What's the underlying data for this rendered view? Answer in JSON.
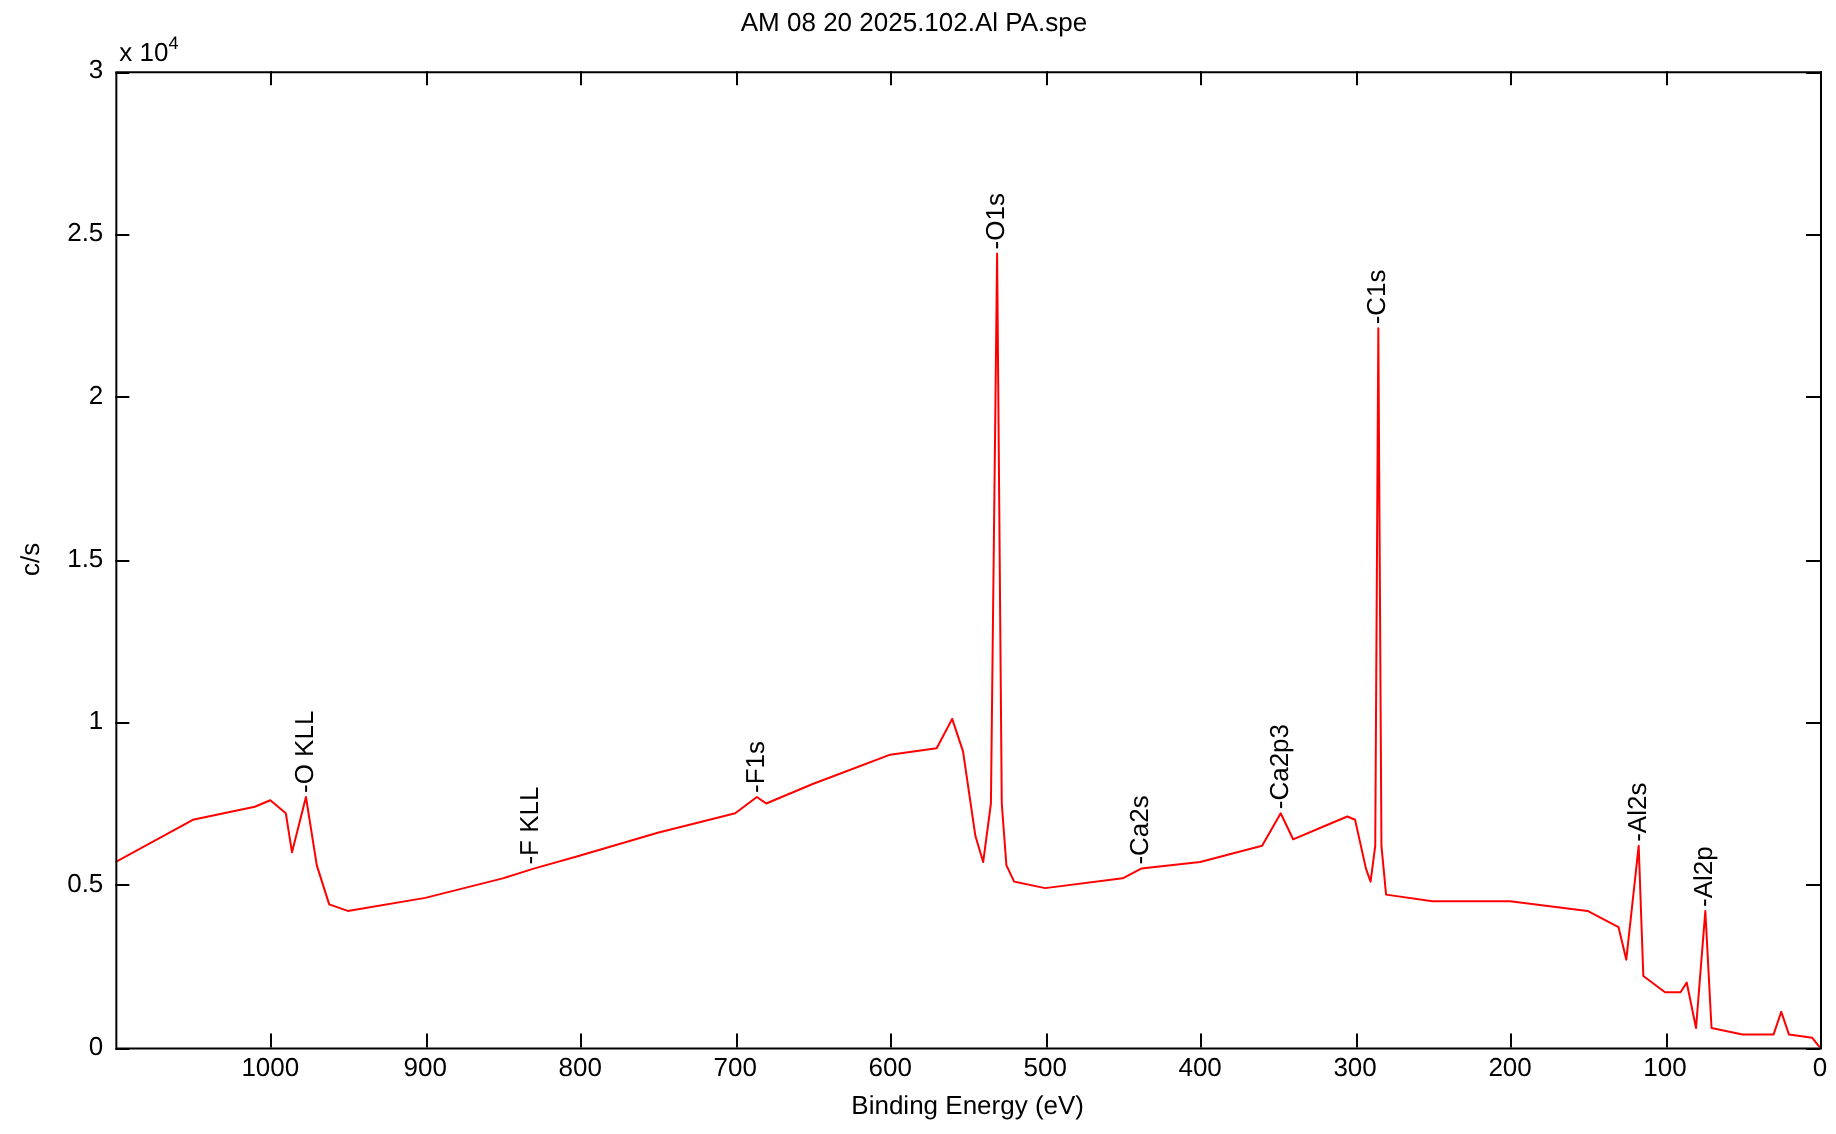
{
  "chart_data": {
    "type": "line",
    "title": "AM 08 20 2025.102.Al PA.spe",
    "xlabel": "Binding Energy (eV)",
    "ylabel": "c/s",
    "xlim": [
      1100,
      0
    ],
    "xticks": [
      1000,
      900,
      800,
      700,
      600,
      500,
      400,
      300,
      200,
      100,
      0
    ],
    "ylim": [
      0,
      3
    ],
    "yticks": [
      0,
      0.5,
      1,
      1.5,
      2,
      2.5,
      3
    ],
    "grid": false,
    "legend": false,
    "marker": "none",
    "line_style": "solid",
    "x": [
      1100,
      1050,
      1010,
      1000,
      990,
      986,
      977,
      970,
      962,
      950,
      900,
      850,
      830,
      800,
      750,
      700,
      686,
      680,
      650,
      600,
      570,
      560,
      553,
      545,
      540,
      535,
      531,
      528,
      525,
      520,
      500,
      450,
      438,
      400,
      360,
      348,
      340,
      320,
      305,
      300,
      293,
      290,
      287,
      285,
      283,
      280,
      250,
      200,
      150,
      130,
      125,
      117,
      114,
      100,
      90,
      86,
      80,
      74,
      70,
      50,
      30,
      25,
      20,
      5,
      0
    ],
    "series": [
      {
        "color": "#ff0000",
        "values": [
          0.57,
          0.7,
          0.74,
          0.76,
          0.72,
          0.6,
          0.77,
          0.56,
          0.44,
          0.42,
          0.46,
          0.52,
          0.55,
          0.59,
          0.66,
          0.72,
          0.77,
          0.75,
          0.81,
          0.9,
          0.92,
          1.01,
          0.91,
          0.65,
          0.57,
          0.75,
          2.44,
          0.75,
          0.56,
          0.51,
          0.49,
          0.52,
          0.55,
          0.57,
          0.62,
          0.72,
          0.64,
          0.68,
          0.71,
          0.7,
          0.55,
          0.51,
          0.62,
          2.21,
          0.62,
          0.47,
          0.45,
          0.45,
          0.42,
          0.37,
          0.27,
          0.62,
          0.22,
          0.17,
          0.17,
          0.2,
          0.06,
          0.42,
          0.06,
          0.04,
          0.04,
          0.11,
          0.04,
          0.03,
          0
        ]
      }
    ],
    "annotations": [
      "x 10$^{4}$",
      {
        "text": "-O KLL",
        "x": 977,
        "y": 0.77
      },
      {
        "text": "-F KLL",
        "x": 832,
        "y": 0.55
      },
      {
        "text": "-F1s",
        "x": 686,
        "y": 0.77
      },
      {
        "text": "-O1s",
        "x": 531,
        "y": 2.44
      },
      {
        "text": "-Ca2s",
        "x": 438,
        "y": 0.55
      },
      {
        "text": "-Ca2p3",
        "x": 348,
        "y": 0.72
      },
      {
        "text": "-C1s",
        "x": 285,
        "y": 2.21
      },
      {
        "text": "-Al2s",
        "x": 117,
        "y": 0.62
      },
      {
        "text": "-Al2p",
        "x": 74,
        "y": 0.42
      }
    ]
  }
}
